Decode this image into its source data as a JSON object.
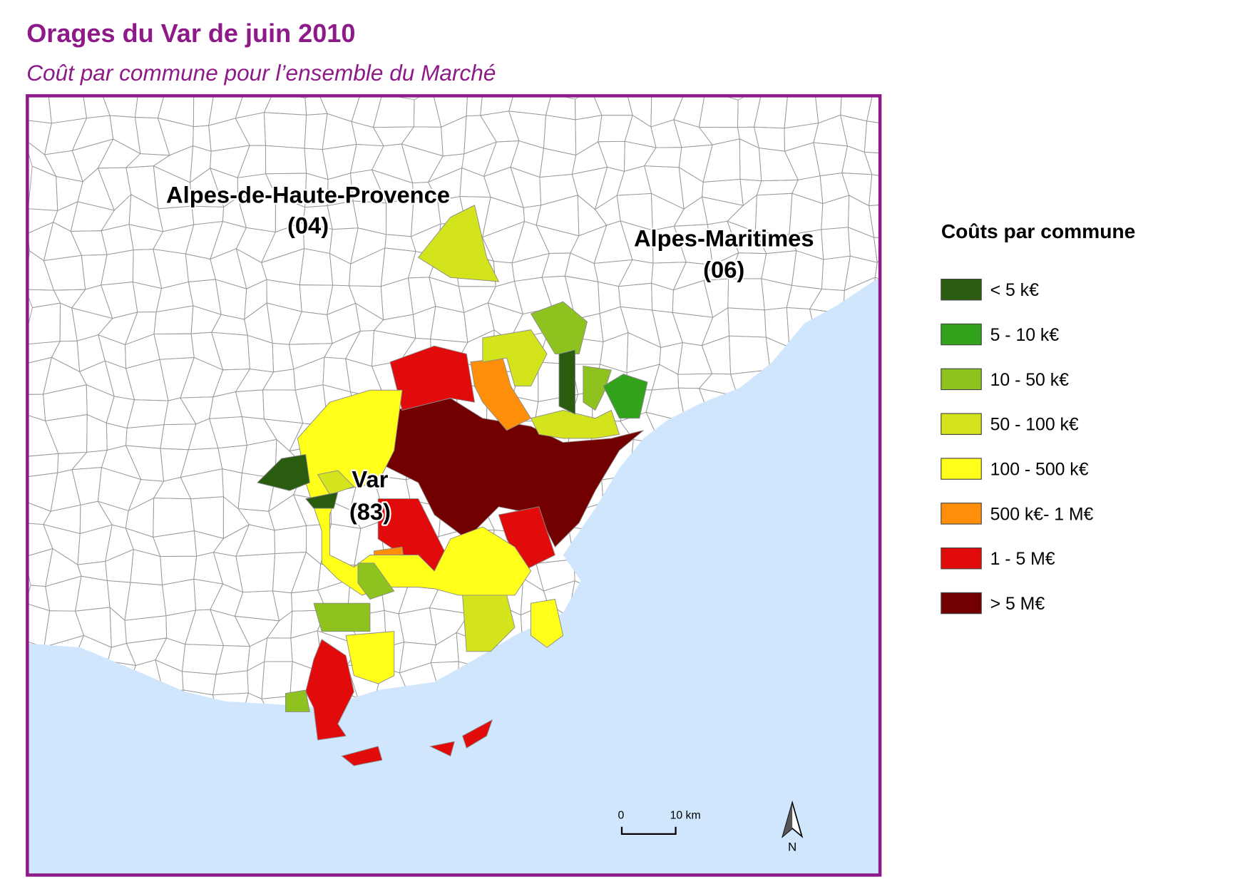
{
  "header": {
    "title": "Orages du Var de juin 2010",
    "subtitle": "Coût par commune pour l’ensemble du Marché"
  },
  "map": {
    "labels": [
      "Alpes-de-Haute-Provence",
      "(04)",
      "Alpes-Maritimes",
      "(06)",
      "Var",
      "(83)"
    ],
    "legend": {
      "title": "Coûts par commune",
      "position": "right",
      "items": [
        {
          "label": "< 5 k€",
          "color": "#2a5c10"
        },
        {
          "label": "5 - 10 k€",
          "color": "#33a31c"
        },
        {
          "label": "10 - 50 k€",
          "color": "#8dc21f"
        },
        {
          "label": "50 - 100 k€",
          "color": "#d4e41c"
        },
        {
          "label": "100 - 500 k€",
          "color": "#ffff1a"
        },
        {
          "label": "500 k€- 1 M€",
          "color": "#ff8f0a"
        },
        {
          "label": "1 - 5 M€",
          "color": "#e10b0b"
        },
        {
          "label": "> 5 M€",
          "color": "#730000"
        }
      ]
    },
    "scale_bar": {
      "start": "0",
      "end": "10 km"
    },
    "north": "N"
  }
}
